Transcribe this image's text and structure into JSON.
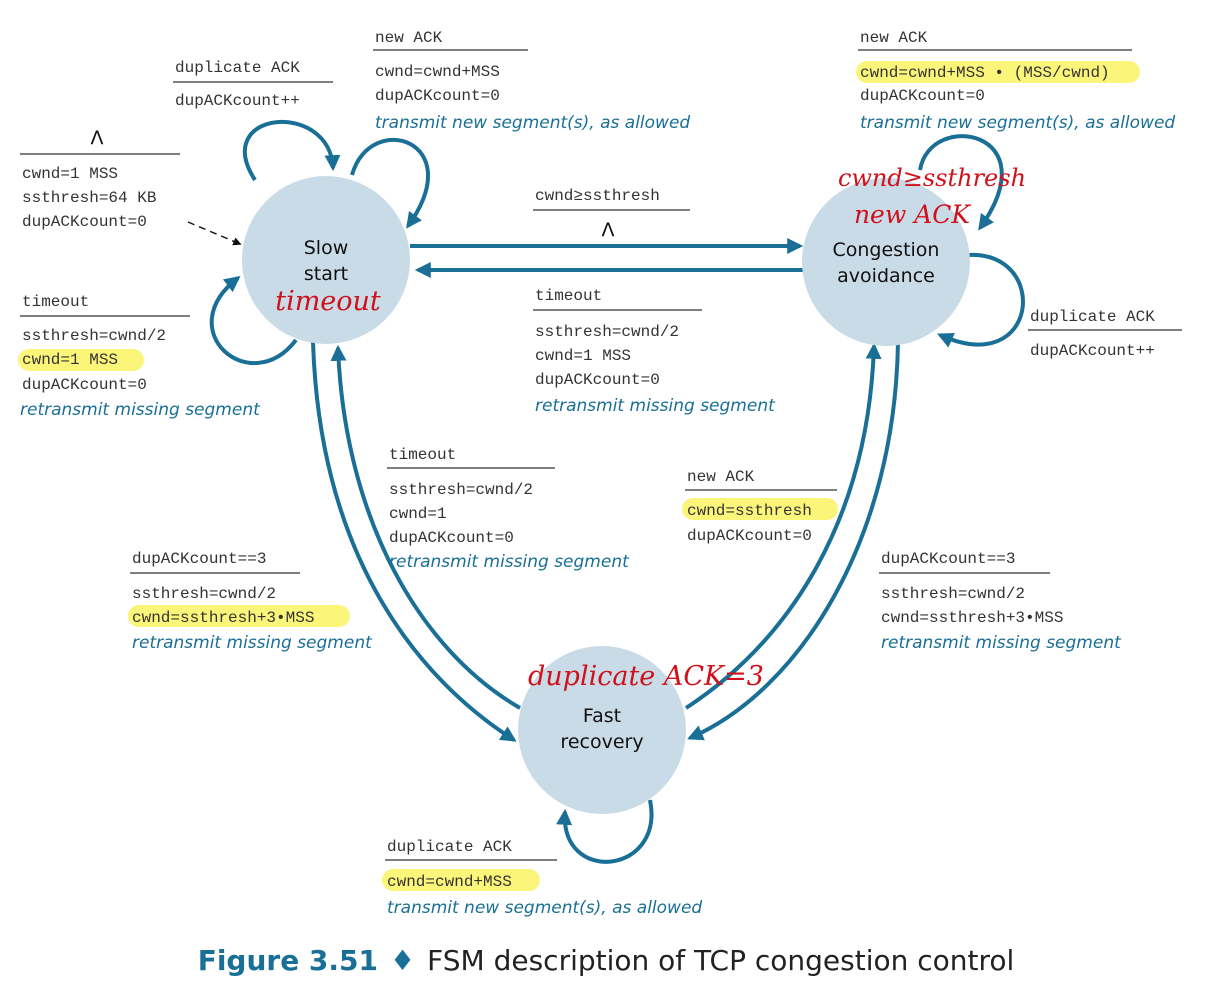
{
  "states": {
    "slow_start": {
      "line1": "Slow",
      "line2": "start",
      "note": "timeout"
    },
    "congestion_avoidance": {
      "line1": "Congestion",
      "line2": "avoidance",
      "note1": "cwnd≥ssthresh",
      "note2": "new ACK"
    },
    "fast_recovery": {
      "line1": "Fast",
      "line2": "recovery",
      "note": "duplicate ACK=3"
    }
  },
  "initial": {
    "event": "Λ",
    "a1": "cwnd=1 MSS",
    "a2": "ssthresh=64 KB",
    "a3": "dupACKcount=0"
  },
  "ss_dup": {
    "event": "duplicate ACK",
    "a1": "dupACKcount++"
  },
  "ss_new": {
    "event": "new ACK",
    "a1": "cwnd=cwnd+MSS",
    "a2": "dupACKcount=0",
    "a3": "transmit new segment(s), as allowed"
  },
  "ss_timeout": {
    "event": "timeout",
    "a1": "ssthresh=cwnd/2",
    "a2": "cwnd=1 MSS",
    "a3": "dupACKcount=0",
    "a4": "retransmit missing segment"
  },
  "ss_to_ca": {
    "event": "cwnd≥ssthresh",
    "a1": "Λ"
  },
  "ca_to_ss": {
    "event": "timeout",
    "a1": "ssthresh=cwnd/2",
    "a2": "cwnd=1 MSS",
    "a3": "dupACKcount=0",
    "a4": "retransmit missing segment"
  },
  "ca_new": {
    "event": "new ACK",
    "a1": "cwnd=cwnd+MSS • (MSS/cwnd)",
    "a2": "dupACKcount=0",
    "a3": "transmit new segment(s), as allowed"
  },
  "ca_dup": {
    "event": "duplicate ACK",
    "a1": "dupACKcount++"
  },
  "fr_to_ss": {
    "event": "timeout",
    "a1": "ssthresh=cwnd/2",
    "a2": "cwnd=1",
    "a3": "dupACKcount=0",
    "a4": "retransmit missing segment"
  },
  "fr_to_ca": {
    "event": "new ACK",
    "a1": "cwnd=ssthresh",
    "a2": "dupACKcount=0"
  },
  "ss_to_fr": {
    "event": "dupACKcount==3",
    "a1": "ssthresh=cwnd/2",
    "a2": "cwnd=ssthresh+3•MSS",
    "a3": "retransmit missing segment"
  },
  "ca_to_fr": {
    "event": "dupACKcount==3",
    "a1": "ssthresh=cwnd/2",
    "a2": "cwnd=ssthresh+3•MSS",
    "a3": "retransmit missing segment"
  },
  "fr_dup": {
    "event": "duplicate ACK",
    "a1": "cwnd=cwnd+MSS",
    "a2": "transmit new segment(s), as allowed"
  },
  "caption": {
    "figure": "Figure 3.51",
    "sep": "♦",
    "text": "FSM description of TCP congestion control"
  },
  "colors": {
    "state_fill": "#c9dbe6",
    "edge": "#1a6f96",
    "highlight": "#fbf57a",
    "handwriting": "#d0101a"
  }
}
